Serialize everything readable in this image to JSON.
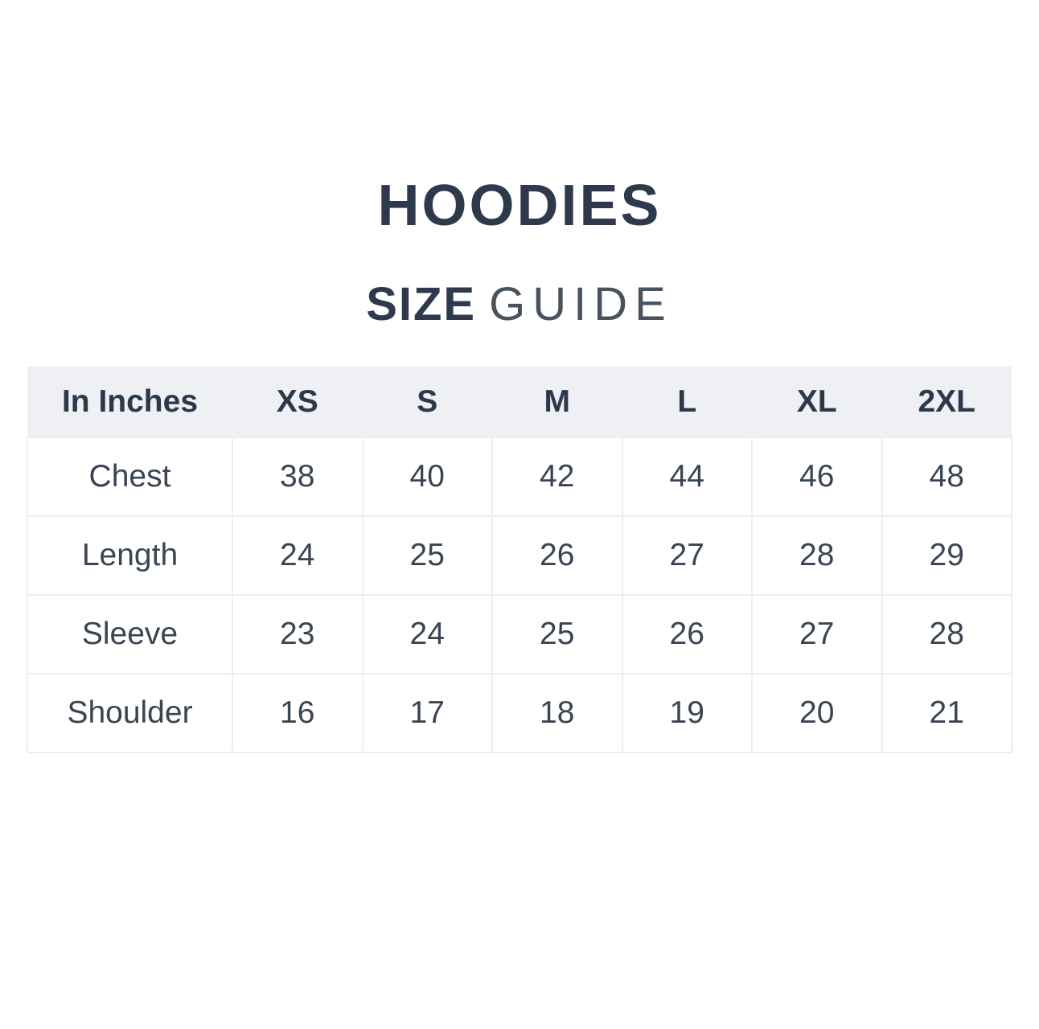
{
  "page": {
    "title": "HOODIES",
    "subtitle_primary": "SIZE",
    "subtitle_secondary": "GUIDE"
  },
  "colors": {
    "heading_text": "#2e3a4c",
    "subtitle_light_text": "#49535f",
    "table_header_bg": "#eef0f4",
    "table_border": "#eceef2",
    "body_text": "#3a4553",
    "background": "#ffffff"
  },
  "chart_data": {
    "type": "table",
    "title": "HOODIES SIZE GUIDE",
    "unit": "In Inches",
    "headers": [
      "In Inches",
      "XS",
      "S",
      "M",
      "L",
      "XL",
      "2XL"
    ],
    "rows": [
      {
        "label": "Chest",
        "values": [
          38,
          40,
          42,
          44,
          46,
          48
        ]
      },
      {
        "label": "Length",
        "values": [
          24,
          25,
          26,
          27,
          28,
          29
        ]
      },
      {
        "label": "Sleeve",
        "values": [
          23,
          24,
          25,
          26,
          27,
          28
        ]
      },
      {
        "label": "Shoulder",
        "values": [
          16,
          17,
          18,
          19,
          20,
          21
        ]
      }
    ]
  }
}
